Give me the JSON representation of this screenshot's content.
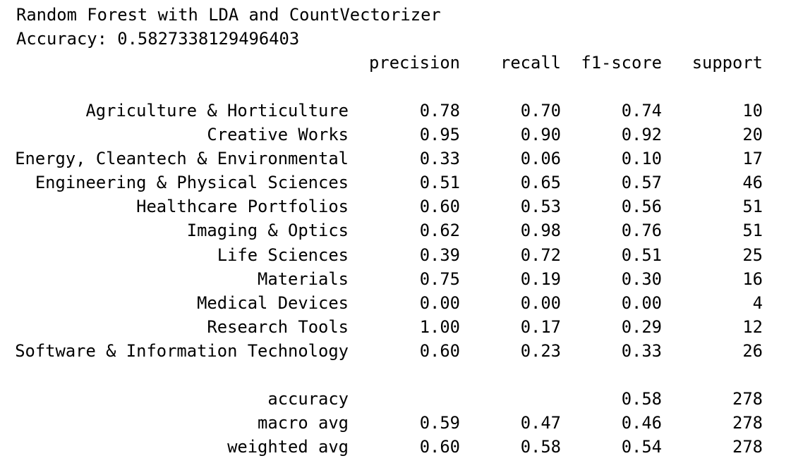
{
  "title": "Random Forest with LDA and CountVectorizer",
  "accuracy_line": "Accuracy: 0.5827338129496403",
  "headers": {
    "precision": "precision",
    "recall": "recall",
    "f1": "f1-score",
    "support": "support"
  },
  "rows": [
    {
      "label": "Agriculture & Horticulture",
      "precision": "0.78",
      "recall": "0.70",
      "f1": "0.74",
      "support": "10"
    },
    {
      "label": "Creative Works",
      "precision": "0.95",
      "recall": "0.90",
      "f1": "0.92",
      "support": "20"
    },
    {
      "label": "Energy, Cleantech & Environmental",
      "precision": "0.33",
      "recall": "0.06",
      "f1": "0.10",
      "support": "17"
    },
    {
      "label": "Engineering & Physical Sciences",
      "precision": "0.51",
      "recall": "0.65",
      "f1": "0.57",
      "support": "46"
    },
    {
      "label": "Healthcare Portfolios",
      "precision": "0.60",
      "recall": "0.53",
      "f1": "0.56",
      "support": "51"
    },
    {
      "label": "Imaging & Optics",
      "precision": "0.62",
      "recall": "0.98",
      "f1": "0.76",
      "support": "51"
    },
    {
      "label": "Life Sciences",
      "precision": "0.39",
      "recall": "0.72",
      "f1": "0.51",
      "support": "25"
    },
    {
      "label": "Materials",
      "precision": "0.75",
      "recall": "0.19",
      "f1": "0.30",
      "support": "16"
    },
    {
      "label": "Medical Devices",
      "precision": "0.00",
      "recall": "0.00",
      "f1": "0.00",
      "support": "4"
    },
    {
      "label": "Research Tools",
      "precision": "1.00",
      "recall": "0.17",
      "f1": "0.29",
      "support": "12"
    },
    {
      "label": "Software & Information Technology",
      "precision": "0.60",
      "recall": "0.23",
      "f1": "0.33",
      "support": "26"
    }
  ],
  "summary": {
    "accuracy": {
      "label": "accuracy",
      "f1": "0.58",
      "support": "278"
    },
    "macro": {
      "label": "macro avg",
      "precision": "0.59",
      "recall": "0.47",
      "f1": "0.46",
      "support": "278"
    },
    "weighted": {
      "label": "weighted avg",
      "precision": "0.60",
      "recall": "0.58",
      "f1": "0.54",
      "support": "278"
    }
  }
}
